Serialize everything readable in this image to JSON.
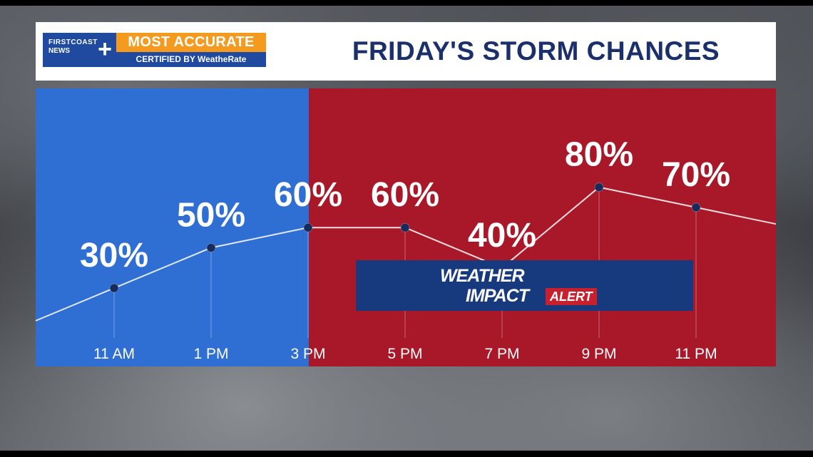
{
  "header": {
    "title": "FRIDAY'S STORM CHANCES",
    "logo": {
      "brand_line1": "FIRSTCOAST",
      "brand_line2": "NEWS",
      "badge_top": "MOST ACCURATE",
      "badge_bottom": "CERTIFIED BY WeatheRate"
    }
  },
  "alert": {
    "line1": "WEATHER",
    "line2": "IMPACT",
    "tag": "ALERT"
  },
  "colors": {
    "panel_blue": "#2f6ed2",
    "panel_red": "#a81828",
    "title_navy": "#1b2f6a",
    "logo_orange": "#f39a1f",
    "logo_blue": "#1f4aa0",
    "marker_navy": "#162a5c"
  },
  "chart_data": {
    "type": "line",
    "title": "FRIDAY'S STORM CHANCES",
    "categories": [
      "11 AM",
      "1 PM",
      "3 PM",
      "5 PM",
      "7 PM",
      "9 PM",
      "11 PM"
    ],
    "values": [
      30,
      50,
      60,
      60,
      40,
      80,
      70
    ],
    "value_labels": [
      "30%",
      "50%",
      "60%",
      "60%",
      "40%",
      "80%",
      "70%"
    ],
    "unit": "%",
    "ylim": [
      0,
      100
    ],
    "grid": false,
    "legend": "none",
    "line_extends_past_edges": true
  }
}
